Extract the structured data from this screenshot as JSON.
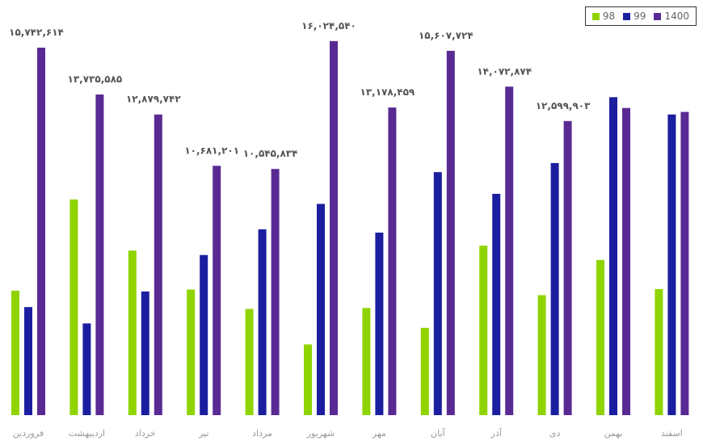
{
  "chart_data": {
    "type": "bar",
    "categories": [
      "فروردین",
      "اردیبهشت",
      "خرداد",
      "تیر",
      "مرداد",
      "شهریور",
      "مهر",
      "آبان",
      "آذر",
      "دی",
      "بهمن",
      "اسفند"
    ],
    "series": [
      {
        "name": "98",
        "color": "#8fd400",
        "values": [
          5.33,
          9.24,
          7.05,
          5.38,
          4.55,
          3.03,
          4.59,
          3.74,
          7.26,
          5.14,
          6.65,
          5.4
        ]
      },
      {
        "name": "99",
        "color": "#1b1f9f",
        "values": [
          4.63,
          3.93,
          5.3,
          6.86,
          7.96,
          9.05,
          7.82,
          10.41,
          9.48,
          10.8,
          13.62,
          12.88
        ]
      },
      {
        "name": "1400",
        "color": "#5a2a94",
        "values": [
          15.742614,
          13.735585,
          12.879742,
          10.681201,
          10.545834,
          16.02454,
          13.178459,
          15.607724,
          14.072874,
          12.599903,
          13.16,
          12.99
        ]
      }
    ],
    "data_labels": [
      "۱۵,۷۴۲,۶۱۴",
      "۱۳,۷۳۵,۵۸۵",
      "۱۲,۸۷۹,۷۴۲",
      "۱۰,۶۸۱,۲۰۱",
      "۱۰,۵۴۵,۸۳۴",
      "۱۶,۰۲۴,۵۴۰",
      "۱۳,۱۷۸,۴۵۹",
      "۱۵,۶۰۷,۷۲۴",
      "۱۴,۰۷۲,۸۷۴",
      "۱۲,۵۹۹,۹۰۳",
      null,
      null
    ],
    "ylim": [
      0,
      16.4
    ],
    "grid": false,
    "legend_position": "top-right",
    "title": "",
    "xlabel": "",
    "ylabel": ""
  }
}
